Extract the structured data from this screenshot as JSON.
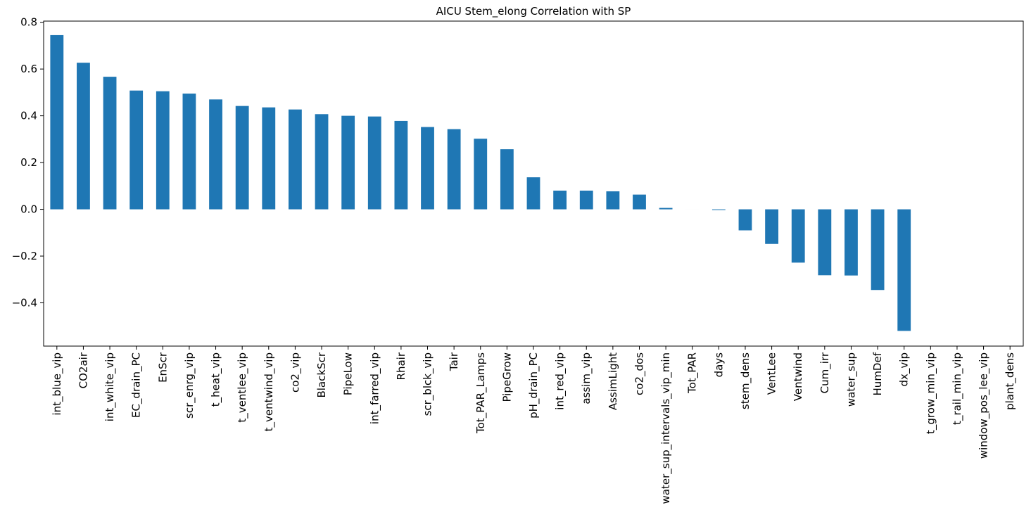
{
  "chart_data": {
    "type": "bar",
    "title": "AICU Stem_elong Correlation with SP",
    "xlabel": "",
    "ylabel": "",
    "bar_color": "#1f77b4",
    "categories": [
      "int_blue_vip",
      "CO2air",
      "int_white_vip",
      "EC_drain_PC",
      "EnScr",
      "scr_enrg_vip",
      "t_heat_vip",
      "t_ventlee_vip",
      "t_ventwind_vip",
      "co2_vip",
      "BlackScr",
      "PipeLow",
      "int_farred_vip",
      "Rhair",
      "scr_blck_vip",
      "Tair",
      "Tot_PAR_Lamps",
      "PipeGrow",
      "pH_drain_PC",
      "int_red_vip",
      "assim_vip",
      "AssimLight",
      "co2_dos",
      "water_sup_intervals_vip_min",
      "Tot_PAR",
      "days",
      "stem_dens",
      "VentLee",
      "Ventwind",
      "Cum_irr",
      "water_sup",
      "HumDef",
      "dx_vip",
      "t_grow_min_vip",
      "t_rail_min_vip",
      "window_pos_lee_vip",
      "plant_dens"
    ],
    "values": [
      0.745,
      0.627,
      0.567,
      0.508,
      0.505,
      0.495,
      0.47,
      0.442,
      0.436,
      0.427,
      0.407,
      0.4,
      0.397,
      0.378,
      0.352,
      0.343,
      0.302,
      0.257,
      0.137,
      0.08,
      0.08,
      0.077,
      0.063,
      0.006,
      0.0,
      -0.003,
      -0.09,
      -0.148,
      -0.228,
      -0.282,
      -0.283,
      -0.345,
      -0.52,
      null,
      null,
      null,
      null
    ],
    "ylim": [
      -0.585,
      0.805
    ],
    "yticks": [
      -0.4,
      -0.2,
      0.0,
      0.2,
      0.4,
      0.6,
      0.8
    ],
    "ytick_labels": [
      "−0.4",
      "−0.2",
      "0.0",
      "0.2",
      "0.4",
      "0.6",
      "0.8"
    ],
    "grid": false,
    "legend": "none"
  }
}
